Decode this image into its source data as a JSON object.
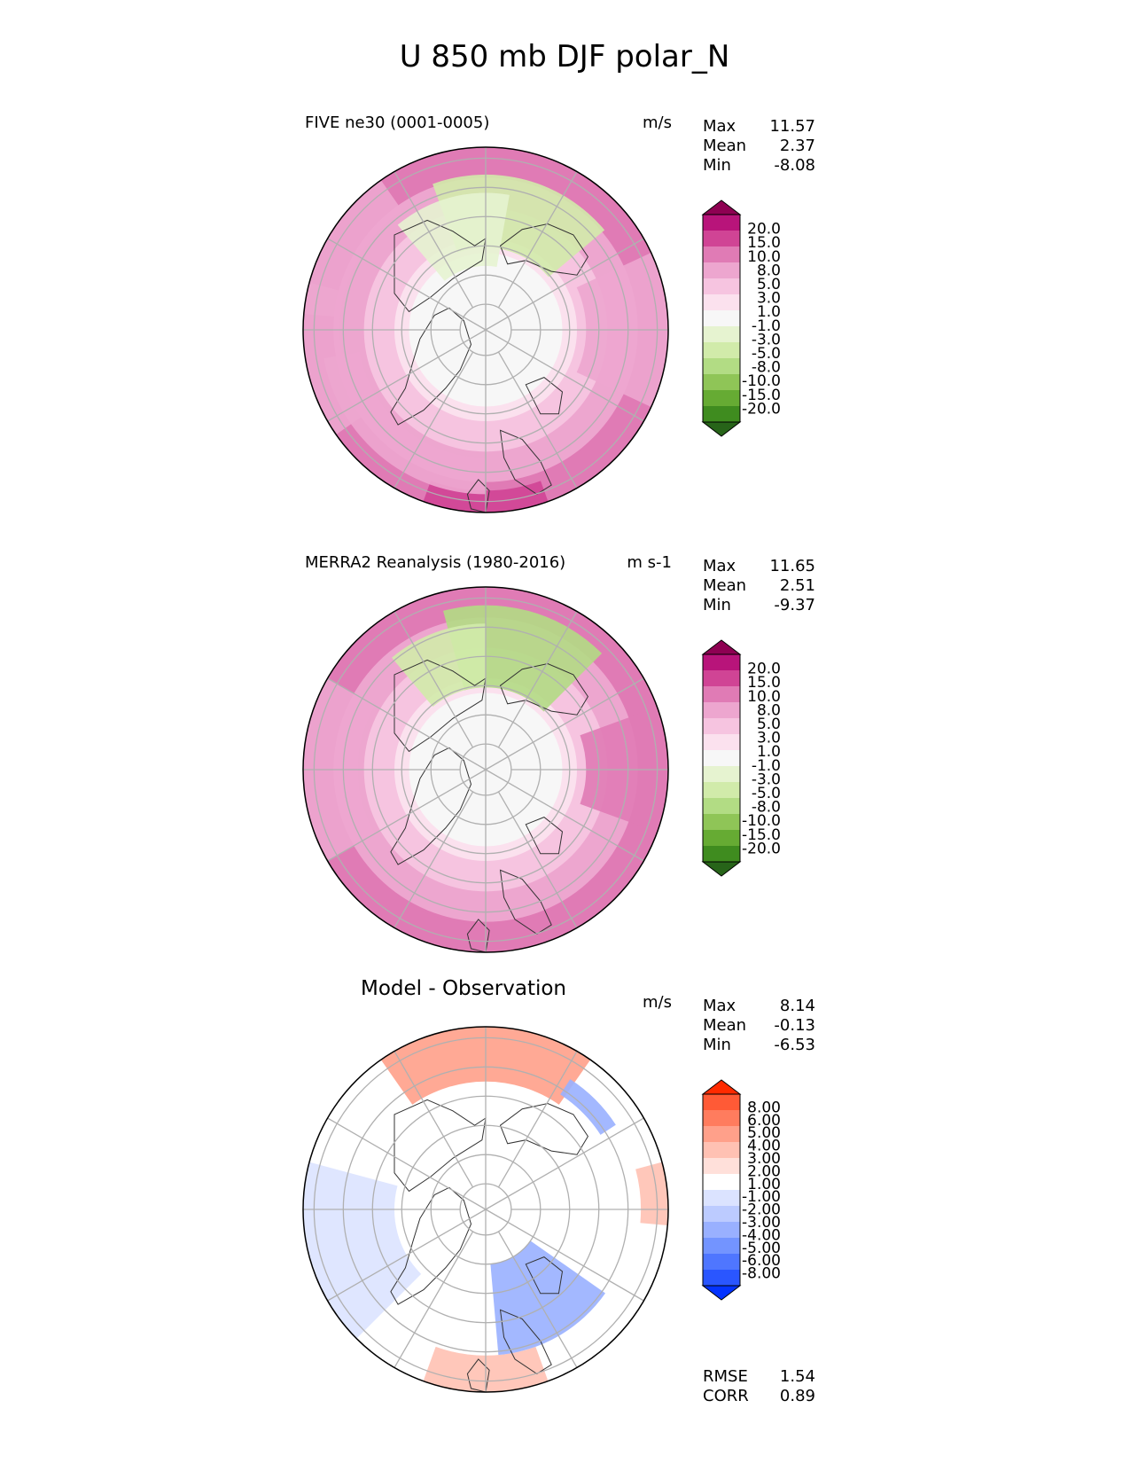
{
  "title": "U 850 mb DJF polar_N",
  "colors": {
    "seq_palette": [
      "#276419",
      "#3f8c1f",
      "#66ab33",
      "#8fc557",
      "#b2dc84",
      "#d1ebaa",
      "#e6f3d0",
      "#f7f7f7",
      "#fbe1ee",
      "#f6c4e0",
      "#eda6cf",
      "#e07bb5",
      "#d04495",
      "#b8147a",
      "#8e0152"
    ],
    "diff_palette": [
      "#0433ff",
      "#2a56ff",
      "#4f76ff",
      "#7394ff",
      "#99b0ff",
      "#bccbff",
      "#dbe3ff",
      "#ffffff",
      "#ffe0da",
      "#ffc1b3",
      "#ffa08a",
      "#ff7c5e",
      "#ff5a36",
      "#ff2a00"
    ],
    "land_outline": "#333333",
    "gridline": "#b0b0b0"
  },
  "chart_data": [
    {
      "type": "polar-contour-map",
      "title": "FIVE ne30 (0001-0005)",
      "units": "m/s",
      "stats": {
        "max_label": "Max",
        "max": "11.57",
        "mean_label": "Mean",
        "mean": "2.37",
        "min_label": "Min",
        "min": "-8.08"
      },
      "colorbar": {
        "palette": "seq",
        "tick_labels": [
          "20.0",
          "15.0",
          "10.0",
          "8.0",
          "5.0",
          "3.0",
          "1.0",
          "-1.0",
          "-3.0",
          "-5.0",
          "-8.0",
          "-10.0",
          "-15.0",
          "-20.0"
        ]
      },
      "field": {
        "outer_band": 9.0,
        "lobes": [
          {
            "angle": 270,
            "spread": 20,
            "r0": 0.88,
            "r1": 1.0,
            "value": 12.0
          },
          {
            "angle": 230,
            "spread": 40,
            "r0": 0.7,
            "r1": 0.9,
            "value": 7.0
          },
          {
            "angle": 0,
            "spread": 25,
            "r0": 0.55,
            "r1": 1.0,
            "value": 8.0
          },
          {
            "angle": 75,
            "spread": 35,
            "r0": 0.45,
            "r1": 0.85,
            "value": -3.0
          },
          {
            "angle": 105,
            "spread": 25,
            "r0": 0.35,
            "r1": 0.75,
            "value": -2.0
          },
          {
            "angle": 150,
            "spread": 25,
            "r0": 0.8,
            "r1": 1.0,
            "value": 7.0
          },
          {
            "angle": 190,
            "spread": 25,
            "r0": 0.8,
            "r1": 1.0,
            "value": 8.0
          }
        ]
      }
    },
    {
      "type": "polar-contour-map",
      "title": "MERRA2 Reanalysis (1980-2016)",
      "units": "m s-1",
      "stats": {
        "max_label": "Max",
        "max": "11.65",
        "mean_label": "Mean",
        "mean": "2.51",
        "min_label": "Min",
        "min": "-9.37"
      },
      "colorbar": {
        "palette": "seq",
        "tick_labels": [
          "20.0",
          "15.0",
          "10.0",
          "8.0",
          "5.0",
          "3.0",
          "1.0",
          "-1.0",
          "-3.0",
          "-5.0",
          "-8.0",
          "-10.0",
          "-15.0",
          "-20.0"
        ]
      },
      "field": {
        "outer_band": 9.5,
        "lobes": [
          {
            "angle": 270,
            "spread": 30,
            "r0": 0.85,
            "r1": 1.0,
            "value": 10.0
          },
          {
            "angle": 0,
            "spread": 20,
            "r0": 0.55,
            "r1": 1.0,
            "value": 10.0
          },
          {
            "angle": 75,
            "spread": 30,
            "r0": 0.45,
            "r1": 0.9,
            "value": -5.0
          },
          {
            "angle": 110,
            "spread": 20,
            "r0": 0.45,
            "r1": 0.8,
            "value": -3.0
          },
          {
            "angle": 180,
            "spread": 30,
            "r0": 0.7,
            "r1": 1.0,
            "value": 8.0
          }
        ]
      }
    },
    {
      "type": "polar-contour-map",
      "title": "Model - Observation",
      "units": "m/s",
      "stats": {
        "max_label": "Max",
        "max": "8.14",
        "mean_label": "Mean",
        "mean": "-0.13",
        "min_label": "Min",
        "min": "-6.53"
      },
      "colorbar": {
        "palette": "diff",
        "tick_labels": [
          "8.00",
          "6.00",
          "5.00",
          "4.00",
          "3.00",
          "2.00",
          "1.00",
          "-1.00",
          "-2.00",
          "-3.00",
          "-4.00",
          "-5.00",
          "-6.00",
          "-8.00"
        ]
      },
      "extra_stats": {
        "rmse_label": "RMSE",
        "rmse": "1.54",
        "corr_label": "CORR",
        "corr": "0.89"
      },
      "field": {
        "outer_band": 0.0,
        "lobes": [
          {
            "angle": 90,
            "spread": 35,
            "r0": 0.7,
            "r1": 1.0,
            "value": 3.5
          },
          {
            "angle": 270,
            "spread": 20,
            "r0": 0.8,
            "r1": 1.0,
            "value": 2.5
          },
          {
            "angle": 300,
            "spread": 25,
            "r0": 0.3,
            "r1": 0.8,
            "value": -3.5
          },
          {
            "angle": 195,
            "spread": 30,
            "r0": 0.5,
            "r1": 1.0,
            "value": -1.5
          },
          {
            "angle": 45,
            "spread": 12,
            "r0": 0.75,
            "r1": 0.85,
            "value": -3.0
          },
          {
            "angle": 5,
            "spread": 10,
            "r0": 0.85,
            "r1": 1.0,
            "value": 2.5
          }
        ]
      }
    }
  ]
}
